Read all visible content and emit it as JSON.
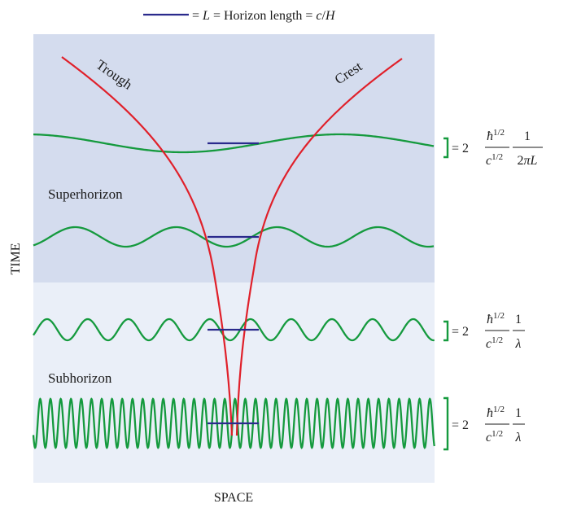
{
  "legend": {
    "prefix": "= ",
    "symbol": "L",
    "mid": " = Horizon length = ",
    "formula_num": "c",
    "formula_sep": "/",
    "formula_den": "H"
  },
  "regions": {
    "super_label": "Superhorizon",
    "sub_label": "Subhorizon"
  },
  "curve_labels": {
    "trough": "Trough",
    "crest": "Crest"
  },
  "axes": {
    "y_label": "TIME",
    "x_label": "SPACE"
  },
  "amplitudes": [
    {
      "prefix": "= 2",
      "num_sym": "ħ",
      "num_exp": "1/2",
      "den_sym": "c",
      "den_exp": "1/2",
      "frac_num": "1",
      "frac_den_2": "2",
      "frac_den_pi": "π",
      "frac_den_L": "L"
    },
    {
      "prefix": "= 2",
      "num_sym": "ħ",
      "num_exp": "1/2",
      "den_sym": "c",
      "den_exp": "1/2",
      "frac_num": "1",
      "frac_den": "λ"
    },
    {
      "prefix": "= 2",
      "num_sym": "ħ",
      "num_exp": "1/2",
      "den_sym": "c",
      "den_exp": "1/2",
      "frac_num": "1",
      "frac_den": "λ"
    }
  ],
  "colors": {
    "superhorizon_bg": "#d4dcee",
    "subhorizon_bg": "#eaeff8",
    "wave": "#159a3e",
    "horizon_line": "#2a2a8c",
    "curve": "#e0202a"
  }
}
